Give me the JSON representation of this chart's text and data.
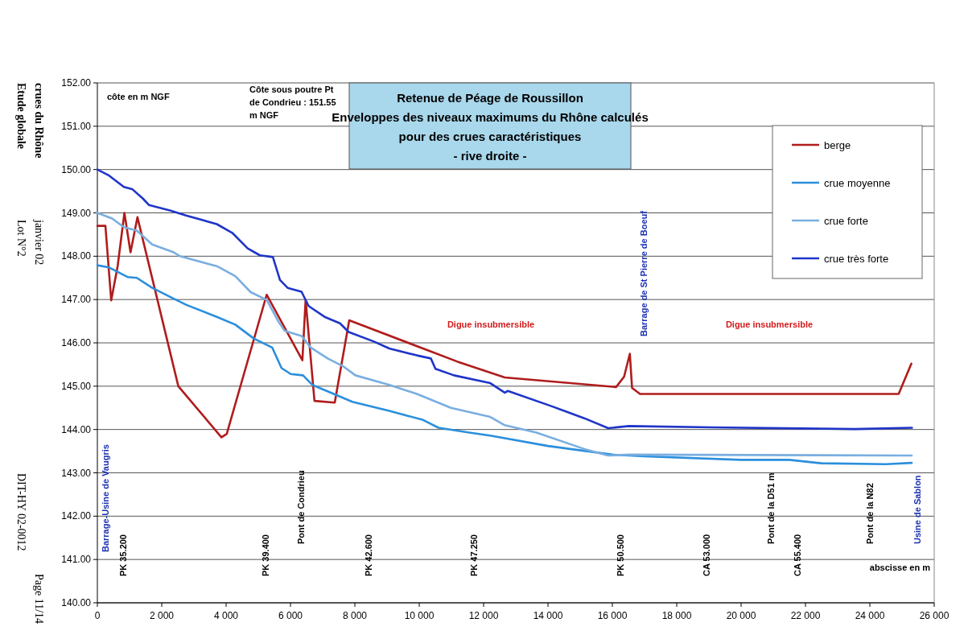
{
  "chart_data": {
    "type": "line",
    "title": "Retenue de Péage de Roussillon\nEnveloppes des niveaux maximums du Rhône calculés\npour des crues caractéristiques\n- rive droite -",
    "xlabel": "abscisse en m",
    "ylabel": "côte en m NGF",
    "annotations": [
      "Côte sous poutre Pt\nde Condrieu : 151.55\nm NGF",
      "Etude globale\ncrues du Rhône",
      "Lot N°2\njanvier 02",
      "DIT-HY 02-0012",
      "Page 11/14",
      "Digue insubmersible",
      "Digue insubmersible",
      "Barrage-Usine de Vaugris",
      "Barrage de St Pierre de Boeuf",
      "Usine de Sablon",
      "PK 35.200",
      "PK 39.400",
      "Pont de Condrieu",
      "PK 42.600",
      "PK 47.250",
      "PK 50.500",
      "CA 53.000",
      "Pont de la D51 m",
      "CA 55.400",
      "Pont de la N82"
    ],
    "xlim": [
      0,
      26000
    ],
    "ylim": [
      140,
      152
    ],
    "xticks": [
      0,
      {
        "value": 2000,
        "label": "2 000"
      },
      {
        "value": 4000,
        "label": "4 000"
      },
      {
        "value": 6000,
        "label": "6 000"
      },
      {
        "value": 8000,
        "label": "8 000"
      },
      {
        "value": 10000,
        "label": "10 000"
      },
      {
        "value": 12000,
        "label": "12 000"
      },
      {
        "value": 14000,
        "label": "14 000"
      },
      {
        "value": 16000,
        "label": "16 000"
      },
      {
        "value": 18000,
        "label": "18 000"
      },
      {
        "value": 20000,
        "label": "20 000"
      },
      {
        "value": 22000,
        "label": "22 000"
      },
      {
        "value": 24000,
        "label": "24 000"
      },
      {
        "value": 26000,
        "label": "26 000"
      }
    ],
    "yticks": [
      {
        "value": 140,
        "label": "140.00"
      },
      {
        "value": 141,
        "label": "141.00"
      },
      {
        "value": 142,
        "label": "142.00"
      },
      {
        "value": 143,
        "label": "143.00"
      },
      {
        "value": 144,
        "label": "144.00"
      },
      {
        "value": 145,
        "label": "145.00"
      },
      {
        "value": 146,
        "label": "146.00"
      },
      {
        "value": 147,
        "label": "147.00"
      },
      {
        "value": 148,
        "label": "148.00"
      },
      {
        "value": 149,
        "label": "149.00"
      },
      {
        "value": 150,
        "label": "150.00"
      },
      {
        "value": 151,
        "label": "151.00"
      },
      {
        "value": 152,
        "label": "152.00"
      }
    ],
    "grid": "y",
    "legend": "top right",
    "marker": "none",
    "line_style": "solid",
    "series": [
      {
        "name": "berge",
        "color": "#b01c1c",
        "x": [
          0,
          250,
          430,
          630,
          840,
          1030,
          1245,
          2515,
          3855,
          4020,
          5260,
          6370,
          6470,
          6745,
          7375,
          7825,
          11175,
          12657,
          16118,
          16365,
          16543,
          16612,
          16860,
          24895,
          25290
        ],
        "values": [
          148.7,
          148.7,
          146.98,
          147.77,
          149.0,
          148.09,
          148.9,
          145.0,
          143.82,
          143.9,
          147.11,
          145.6,
          146.99,
          144.66,
          144.62,
          146.52,
          145.57,
          145.2,
          144.98,
          145.22,
          145.75,
          144.96,
          144.82,
          144.82,
          145.52
        ]
      },
      {
        "name": "crue moyenne",
        "color": "#2b8fdc",
        "x": [
          0,
          365,
          938,
          1225,
          1703,
          2373,
          2755,
          3712,
          4286,
          4860,
          5434,
          5720,
          6008,
          6390,
          6677,
          7347,
          7921,
          9070,
          10122,
          10600,
          11557,
          12208,
          14000,
          16000,
          17000,
          20000,
          21500,
          22500,
          24500,
          25300
        ],
        "values": [
          147.79,
          147.74,
          147.52,
          147.5,
          147.27,
          147.02,
          146.88,
          146.6,
          146.42,
          146.1,
          145.89,
          145.42,
          145.28,
          145.25,
          145.03,
          144.82,
          144.64,
          144.43,
          144.22,
          144.04,
          143.93,
          143.86,
          143.62,
          143.42,
          143.38,
          143.3,
          143.3,
          143.22,
          143.2,
          143.23
        ]
      },
      {
        "name": "crue forte",
        "color": "#7aaee0",
        "x": [
          0,
          459,
          823,
          1225,
          1703,
          2373,
          2564,
          3712,
          4286,
          4764,
          5262,
          5625,
          5817,
          6343,
          6630,
          7156,
          7634,
          8017,
          9070,
          9930,
          10983,
          12208,
          12657,
          13642,
          15128,
          15870,
          16513,
          25300
        ],
        "values": [
          149.0,
          148.87,
          148.67,
          148.59,
          148.27,
          148.09,
          148.0,
          147.77,
          147.54,
          147.17,
          146.99,
          146.49,
          146.28,
          146.16,
          145.89,
          145.64,
          145.46,
          145.25,
          145.03,
          144.82,
          144.5,
          144.29,
          144.1,
          143.93,
          143.55,
          143.4,
          143.42,
          143.4
        ]
      },
      {
        "name": "crue très forte",
        "color": "#1f35c8",
        "x": [
          0,
          365,
          823,
          1080,
          1415,
          1607,
          2277,
          2755,
          3712,
          4190,
          4669,
          5051,
          5453,
          5673,
          5912,
          6343,
          6563,
          7060,
          7539,
          7807,
          8591,
          9070,
          9930,
          10361,
          10504,
          11079,
          12208,
          12657,
          12755,
          14140,
          15128,
          15870,
          16513,
          19083,
          23530,
          25309
        ],
        "values": [
          150.0,
          149.86,
          149.6,
          149.55,
          149.33,
          149.18,
          149.05,
          148.94,
          148.74,
          148.54,
          148.18,
          148.02,
          147.98,
          147.45,
          147.27,
          147.18,
          146.85,
          146.6,
          146.45,
          146.25,
          146.03,
          145.87,
          145.71,
          145.64,
          145.4,
          145.25,
          145.07,
          144.85,
          144.89,
          144.53,
          144.26,
          144.03,
          144.08,
          144.05,
          144.01,
          144.04
        ]
      }
    ]
  }
}
